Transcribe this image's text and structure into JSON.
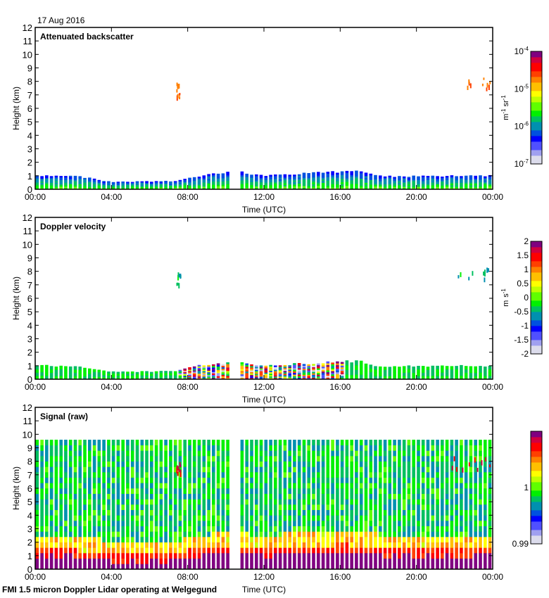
{
  "figure": {
    "date": "17 Aug 2016",
    "footer": "FMI 1.5 micron Doppler Lidar operating at Welgegund"
  },
  "chart_data": [
    {
      "type": "heatmap",
      "title": "Attenuated backscatter",
      "xlabel": "Time (UTC)",
      "ylabel": "Height (km)",
      "x_ticks": [
        "00:00",
        "04:00",
        "08:00",
        "12:00",
        "16:00",
        "20:00",
        "00:00"
      ],
      "xlim_hours": [
        0,
        24
      ],
      "y_ticks": [
        "0",
        "1",
        "2",
        "3",
        "4",
        "5",
        "6",
        "7",
        "8",
        "9",
        "10",
        "11",
        "12"
      ],
      "ylim": [
        0,
        12
      ],
      "colorbar": {
        "label": "m-1 sr-1",
        "label_base": [
          "m",
          "sr"
        ],
        "label_exp": [
          "-1",
          "-1"
        ],
        "scale": "log",
        "range": [
          1e-07,
          0.0001
        ],
        "ticks": [
          {
            "base": "10",
            "exp": "-4"
          },
          {
            "base": "10",
            "exp": "-5"
          },
          {
            "base": "10",
            "exp": "-6"
          },
          {
            "base": "10",
            "exp": "-7"
          }
        ]
      },
      "data_gap_hours": [
        10.25,
        10.65
      ],
      "boundary_layer_top_km": [
        [
          0,
          1.0
        ],
        [
          2,
          1.0
        ],
        [
          3,
          0.8
        ],
        [
          4,
          0.55
        ],
        [
          7.5,
          0.6
        ],
        [
          8,
          0.9
        ],
        [
          10,
          1.2
        ],
        [
          10.7,
          1.3
        ],
        [
          12,
          1.0
        ],
        [
          14,
          1.15
        ],
        [
          16,
          1.3
        ],
        [
          17,
          1.35
        ],
        [
          18,
          1.0
        ],
        [
          20,
          0.95
        ],
        [
          24,
          1.0
        ]
      ],
      "cloud_features": [
        {
          "time_hours": [
            7.4,
            7.6
          ],
          "height_km": [
            6.8,
            8.0
          ]
        },
        {
          "time_hours": [
            21.8,
            23.9
          ],
          "height_km": [
            7.5,
            8.4
          ]
        }
      ]
    },
    {
      "type": "heatmap",
      "title": "Doppler velocity",
      "xlabel": "Time (UTC)",
      "ylabel": "Height (km)",
      "x_ticks": [
        "00:00",
        "04:00",
        "08:00",
        "12:00",
        "16:00",
        "20:00",
        "00:00"
      ],
      "xlim_hours": [
        0,
        24
      ],
      "y_ticks": [
        "0",
        "1",
        "2",
        "3",
        "4",
        "5",
        "6",
        "7",
        "8",
        "9",
        "10",
        "11",
        "12"
      ],
      "ylim": [
        0,
        12
      ],
      "colorbar": {
        "label": "m s-1",
        "label_base": [
          "m",
          "s"
        ],
        "label_exp": [
          "",
          "-1"
        ],
        "scale": "linear",
        "range": [
          -2,
          2
        ],
        "ticks": [
          "2",
          "1.5",
          "1",
          "0.5",
          "0",
          "-0.5",
          "-1",
          "-1.5",
          "-2"
        ]
      },
      "data_gap_hours": [
        10.25,
        10.65
      ],
      "turbulent_period_hours": [
        7.5,
        16
      ]
    },
    {
      "type": "heatmap",
      "title": "Signal (raw)",
      "xlabel": "Time (UTC)",
      "ylabel": "Height (km)",
      "x_ticks": [
        "00:00",
        "04:00",
        "08:00",
        "12:00",
        "16:00",
        "20:00",
        "00:00"
      ],
      "xlim_hours": [
        0,
        24
      ],
      "y_ticks": [
        "0",
        "1",
        "2",
        "3",
        "4",
        "5",
        "6",
        "7",
        "8",
        "9",
        "10",
        "11",
        "12"
      ],
      "ylim": [
        0,
        12
      ],
      "max_height_km": 9.6,
      "colorbar": {
        "label": "",
        "scale": "linear",
        "range": [
          0.99,
          1.01
        ],
        "ticks": [
          "1",
          "0.99"
        ]
      },
      "data_gap_hours": [
        10.25,
        10.65
      ]
    }
  ],
  "colors": {
    "palette": [
      "#dcdcec",
      "#a0a0f0",
      "#5050ff",
      "#0000ff",
      "#0050e0",
      "#0090b0",
      "#00c060",
      "#00f000",
      "#60ff00",
      "#c0ff00",
      "#ffff00",
      "#ffc000",
      "#ff8000",
      "#ff4000",
      "#ff0000",
      "#d00040",
      "#800080"
    ]
  }
}
